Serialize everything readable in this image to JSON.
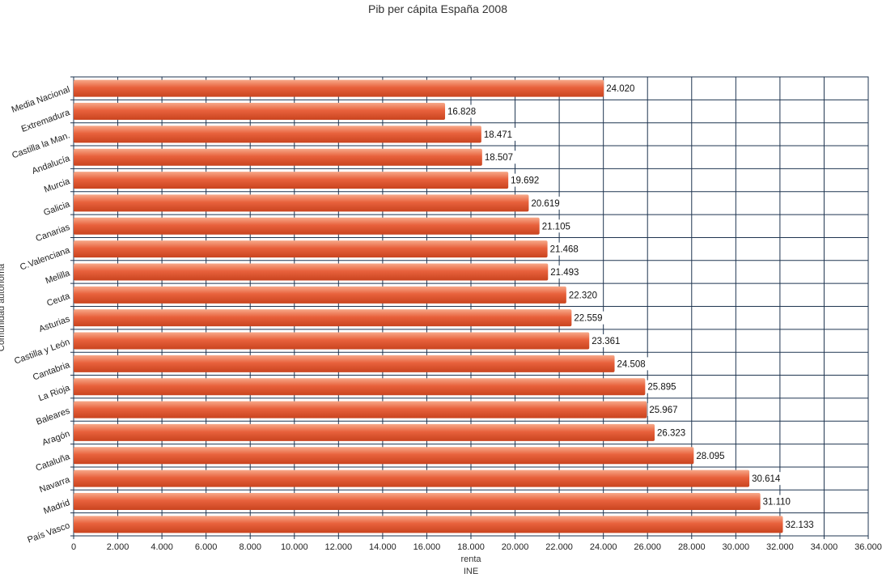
{
  "chart_data": {
    "type": "bar",
    "orientation": "horizontal",
    "title": "Pib per cápita España 2008",
    "xlabel": "renta",
    "xlabel_sub": "INE",
    "ylabel": "Comunidad autónoma",
    "xlim": [
      0,
      36000
    ],
    "x_ticks": [
      "0",
      "2.000",
      "4.000",
      "6.000",
      "8.000",
      "10.000",
      "12.000",
      "14.000",
      "16.000",
      "18.000",
      "20.000",
      "22.000",
      "24.000",
      "26.000",
      "28.000",
      "30.000",
      "32.000",
      "34.000",
      "36.000"
    ],
    "grid": true,
    "categories": [
      "Media Nacional",
      "Extremadura",
      "Castilla la Man.",
      "Andalucía",
      "Murcia",
      "Galicia",
      "Canarias",
      "C.Valenciana",
      "Melilla",
      "Ceuta",
      "Asturias",
      "Castilla y León",
      "Cantabria",
      "La Rioja",
      "Baleares",
      "Aragón",
      "Cataluña",
      "Navarra",
      "Madrid",
      "País Vasco"
    ],
    "values": [
      24020,
      16828,
      18471,
      18507,
      19692,
      20619,
      21105,
      21468,
      21493,
      22320,
      22559,
      23361,
      24508,
      25895,
      25967,
      26323,
      28095,
      30614,
      31110,
      32133
    ],
    "value_labels": [
      "24.020",
      "16.828",
      "18.471",
      "18.507",
      "19.692",
      "20.619",
      "21.105",
      "21.468",
      "21.493",
      "22.320",
      "22.559",
      "23.361",
      "24.508",
      "25.895",
      "25.967",
      "26.323",
      "28.095",
      "30.614",
      "31.110",
      "32.133"
    ],
    "bar_color": "#e8613c",
    "grid_color": "#1f3550",
    "plot_background": "#ffffff"
  }
}
